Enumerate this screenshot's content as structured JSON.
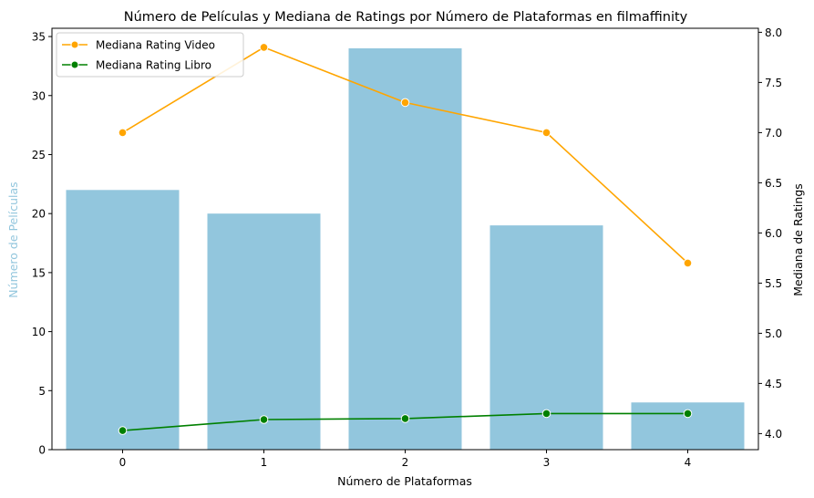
{
  "chart_data": {
    "type": "bar",
    "title": "Número de Películas y Mediana de Ratings por Número de Plataformas en filmaffinity",
    "xlabel": "Número de Plataformas",
    "ylabel": "Número de Películas",
    "ylabel_right": "Mediana de Ratings",
    "categories": [
      "0",
      "1",
      "2",
      "3",
      "4"
    ],
    "bars": {
      "values": [
        22,
        20,
        34,
        19,
        4
      ],
      "color": "#92c6dd"
    },
    "ylim": [
      0,
      35.7
    ],
    "yticks": [
      0,
      5,
      10,
      15,
      20,
      25,
      30,
      35
    ],
    "ylim_right": [
      3.84,
      8.04
    ],
    "yticks_right": [
      "4.0",
      "4.5",
      "5.0",
      "5.5",
      "6.0",
      "6.5",
      "7.0",
      "7.5",
      "8.0"
    ],
    "series": [
      {
        "name": "Mediana Rating Video",
        "values": [
          7.0,
          7.85,
          7.3,
          7.0,
          5.7
        ],
        "color": "#ffa500"
      },
      {
        "name": "Mediana Rating Libro",
        "values": [
          4.03,
          4.14,
          4.15,
          4.2,
          4.2
        ],
        "color": "#008000"
      }
    ],
    "legend_position": "top-left",
    "grid": false
  }
}
